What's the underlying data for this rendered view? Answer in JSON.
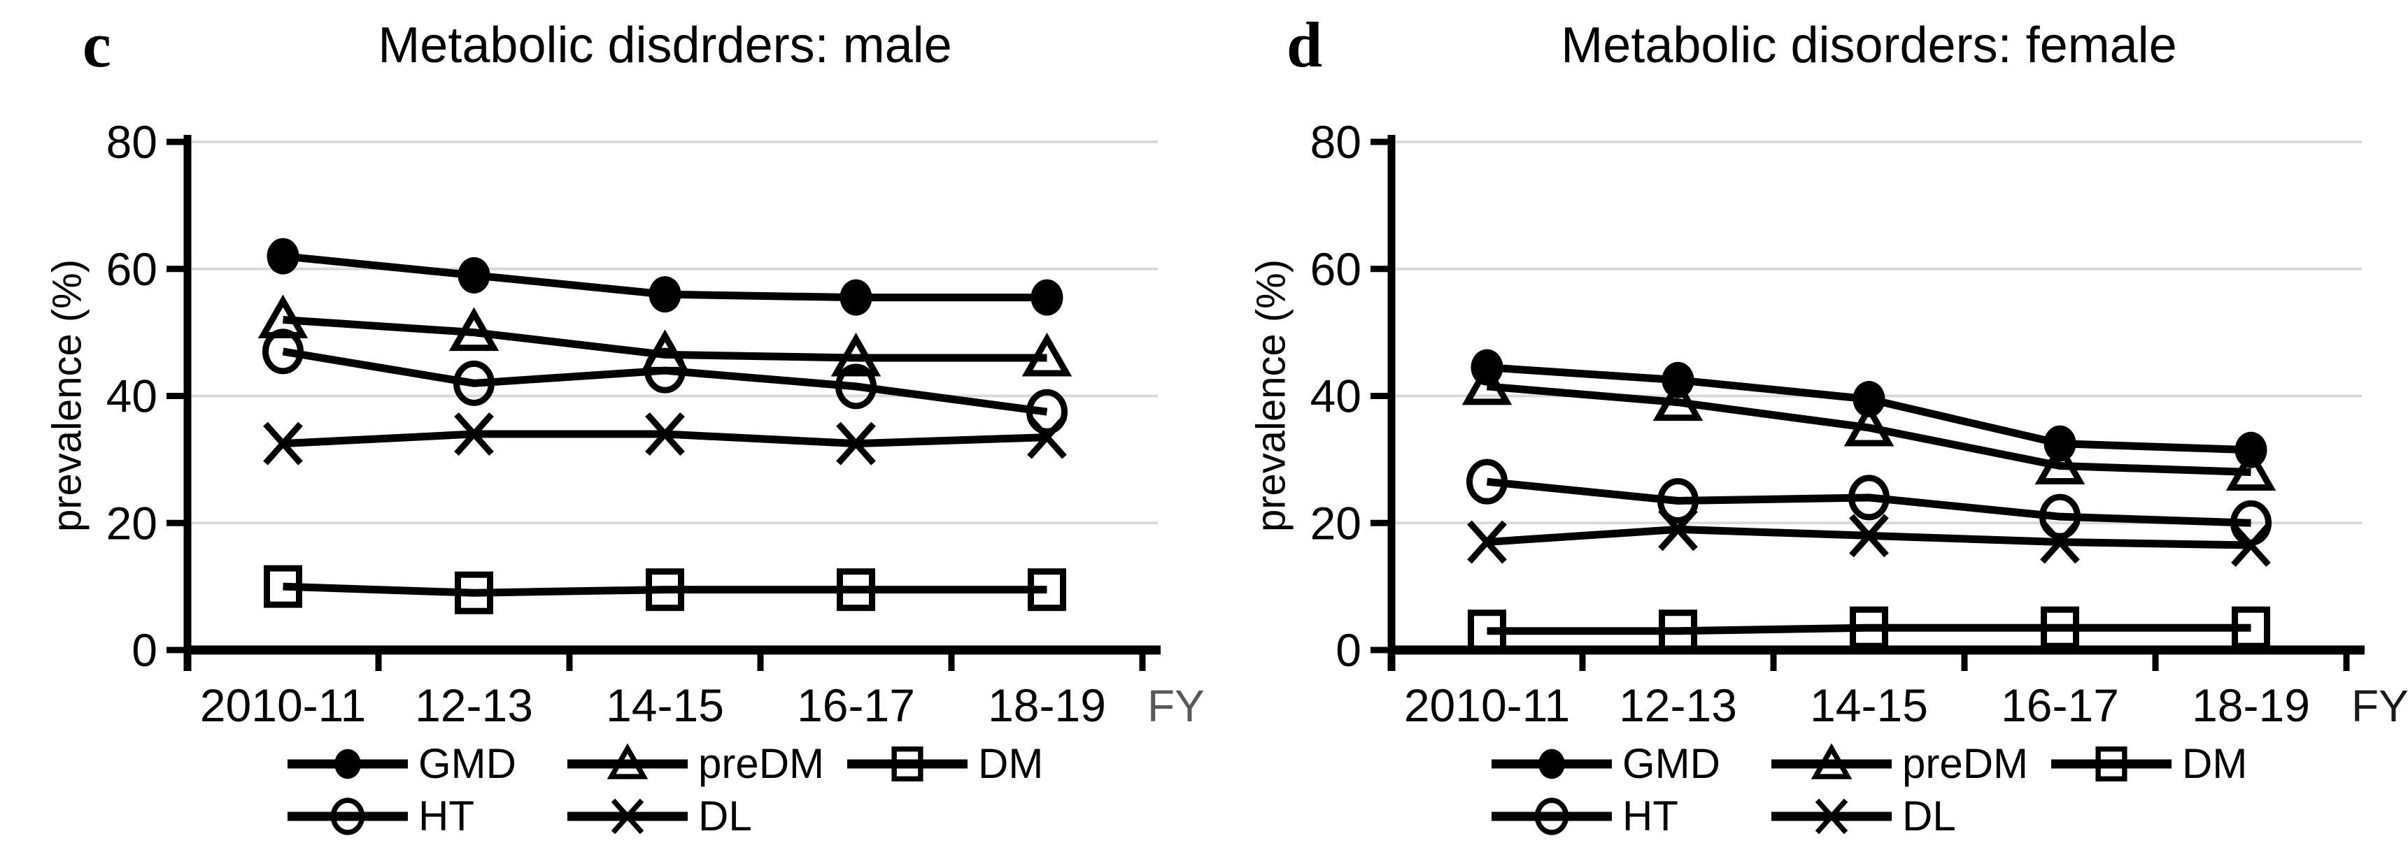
{
  "figure": {
    "background": "#ffffff",
    "text_color": "#000000",
    "grid_color": "#d9d9d9"
  },
  "legend": {
    "rows": [
      [
        "GMD",
        "preDM",
        "DM"
      ],
      [
        "HT",
        "DL"
      ]
    ]
  },
  "chart_data": [
    {
      "type": "line",
      "panel_label": "c",
      "title": "Metabolic disdrders: male",
      "ylabel": "prevalence (%)",
      "xlabel": "FY",
      "xlabel_color": "#595959",
      "categories": [
        "2010-11",
        "12-13",
        "14-15",
        "16-17",
        "18-19"
      ],
      "ylim": [
        0,
        80
      ],
      "yticks": [
        0,
        20,
        40,
        60,
        80
      ],
      "grid": "horizontal",
      "legend_position": "bottom",
      "line_color": "#000000",
      "series": [
        {
          "name": "GMD",
          "marker": "filled-circle",
          "values": [
            62,
            59,
            56,
            55.5,
            55.5
          ]
        },
        {
          "name": "preDM",
          "marker": "open-triangle",
          "values": [
            52,
            50,
            46.5,
            46,
            46
          ]
        },
        {
          "name": "DM",
          "marker": "open-square",
          "values": [
            10,
            9,
            9.5,
            9.5,
            9.5
          ]
        },
        {
          "name": "HT",
          "marker": "open-circle",
          "values": [
            47,
            42,
            44,
            41.5,
            37.5
          ]
        },
        {
          "name": "DL",
          "marker": "x-cross",
          "values": [
            32.5,
            34,
            34,
            32.5,
            33.5
          ]
        }
      ]
    },
    {
      "type": "line",
      "panel_label": "d",
      "title": "Metabolic disorders: female",
      "ylabel": "prevalence (%)",
      "xlabel": "FY",
      "xlabel_color": "#1a1a1a",
      "categories": [
        "2010-11",
        "12-13",
        "14-15",
        "16-17",
        "18-19"
      ],
      "ylim": [
        0,
        80
      ],
      "yticks": [
        0,
        20,
        40,
        60,
        80
      ],
      "grid": "horizontal",
      "legend_position": "bottom",
      "line_color": "#000000",
      "series": [
        {
          "name": "GMD",
          "marker": "filled-circle",
          "values": [
            44.5,
            42.5,
            39.5,
            32.5,
            31.5
          ]
        },
        {
          "name": "preDM",
          "marker": "open-triangle",
          "values": [
            41.5,
            39,
            35,
            29,
            28
          ]
        },
        {
          "name": "DM",
          "marker": "open-square",
          "values": [
            3,
            3,
            3.5,
            3.5,
            3.5
          ]
        },
        {
          "name": "HT",
          "marker": "open-circle",
          "values": [
            26.5,
            23.5,
            24,
            21,
            20
          ]
        },
        {
          "name": "DL",
          "marker": "x-cross",
          "values": [
            17,
            19,
            18,
            17,
            16.5
          ]
        }
      ]
    }
  ]
}
